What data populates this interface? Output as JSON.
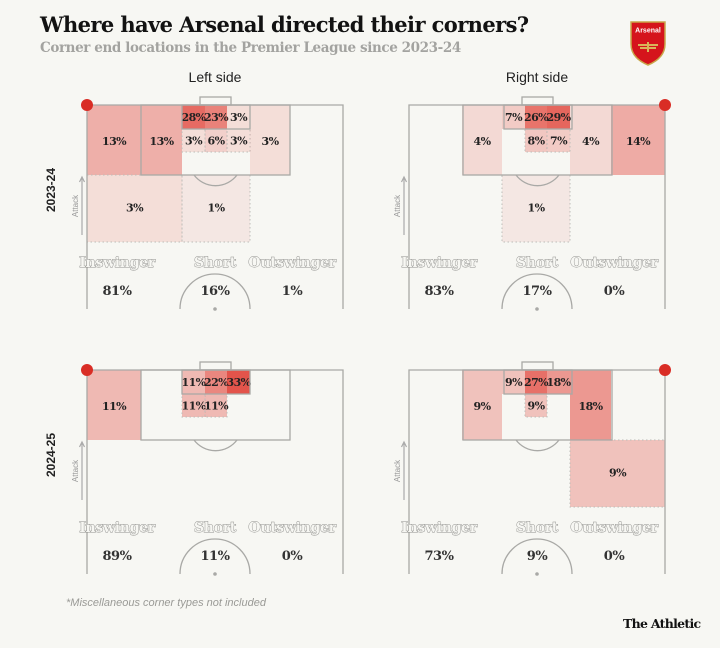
{
  "header": {
    "title": "Where have Arsenal directed their corners?",
    "subtitle": "Corner end locations in the Premier League since 2023-24",
    "logo_text": "Arsenal"
  },
  "columns": {
    "left": "Left side",
    "right": "Right side"
  },
  "attack_label": "Attack",
  "footer": {
    "note": "*Miscellaneous corner types not included",
    "brand": "The Athletic"
  },
  "colors": {
    "heat": "#e0392f",
    "corner_dot": "#d92d25",
    "background": "#f7f7f3"
  },
  "chart_data": [
    {
      "type": "heatmap",
      "season": "2023-24",
      "side": "Left side",
      "types": [
        {
          "label": "Inswinger",
          "value": "81%"
        },
        {
          "label": "Short",
          "value": "16%"
        },
        {
          "label": "Outswinger",
          "value": "1%"
        }
      ],
      "cells": [
        {
          "zone": "near_wide",
          "pct": 13
        },
        {
          "zone": "near_box",
          "pct": 13
        },
        {
          "zone": "six_near",
          "pct": 28
        },
        {
          "zone": "six_mid",
          "pct": 23
        },
        {
          "zone": "six_far",
          "pct": 3
        },
        {
          "zone": "row2_near",
          "pct": 3
        },
        {
          "zone": "row2_mid",
          "pct": 6
        },
        {
          "zone": "row2_far",
          "pct": 3
        },
        {
          "zone": "far_box",
          "pct": 3
        },
        {
          "zone": "deep_near",
          "pct": 3
        },
        {
          "zone": "deep_mid",
          "pct": 1
        }
      ]
    },
    {
      "type": "heatmap",
      "season": "2023-24",
      "side": "Right side",
      "types": [
        {
          "label": "Inswinger",
          "value": "83%"
        },
        {
          "label": "Short",
          "value": "17%"
        },
        {
          "label": "Outswinger",
          "value": "0%"
        }
      ],
      "cells": [
        {
          "zone": "near_wide",
          "pct": 14
        },
        {
          "zone": "near_box",
          "pct": 4
        },
        {
          "zone": "six_near",
          "pct": 29
        },
        {
          "zone": "six_mid",
          "pct": 26
        },
        {
          "zone": "six_far",
          "pct": 7
        },
        {
          "zone": "row2_near",
          "pct": 7
        },
        {
          "zone": "row2_mid",
          "pct": 8
        },
        {
          "zone": "far_box",
          "pct": 4
        },
        {
          "zone": "deep_mid",
          "pct": 1
        }
      ]
    },
    {
      "type": "heatmap",
      "season": "2024-25",
      "side": "Left side",
      "types": [
        {
          "label": "Inswinger",
          "value": "89%"
        },
        {
          "label": "Short",
          "value": "11%"
        },
        {
          "label": "Outswinger",
          "value": "0%"
        }
      ],
      "cells": [
        {
          "zone": "near_wide",
          "pct": 11
        },
        {
          "zone": "six_near",
          "pct": 11
        },
        {
          "zone": "six_mid",
          "pct": 22
        },
        {
          "zone": "six_far",
          "pct": 33
        },
        {
          "zone": "row2_near",
          "pct": 11
        },
        {
          "zone": "row2_mid",
          "pct": 11
        }
      ]
    },
    {
      "type": "heatmap",
      "season": "2024-25",
      "side": "Right side",
      "types": [
        {
          "label": "Inswinger",
          "value": "73%"
        },
        {
          "label": "Short",
          "value": "9%"
        },
        {
          "label": "Outswinger",
          "value": "0%"
        }
      ],
      "cells": [
        {
          "zone": "near_box",
          "pct": 18
        },
        {
          "zone": "six_near",
          "pct": 18
        },
        {
          "zone": "six_mid",
          "pct": 27
        },
        {
          "zone": "six_far",
          "pct": 9
        },
        {
          "zone": "row2_mid",
          "pct": 9
        },
        {
          "zone": "far_box",
          "pct": 9
        },
        {
          "zone": "deep_near",
          "pct": 9
        }
      ]
    }
  ]
}
